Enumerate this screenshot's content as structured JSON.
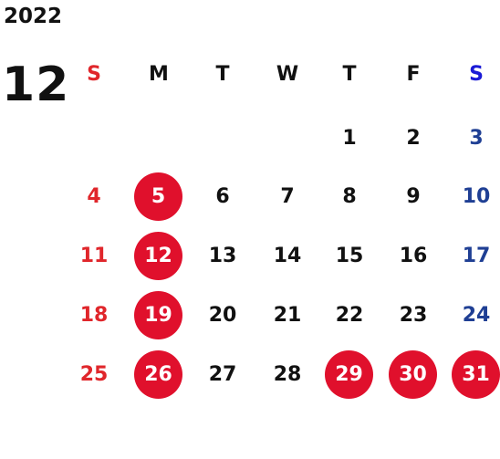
{
  "calendar": {
    "year": "2022",
    "month": "12",
    "weekdays": [
      "S",
      "M",
      "T",
      "W",
      "T",
      "F",
      "S"
    ],
    "weeks": [
      [
        "",
        "",
        "",
        "",
        "1",
        "2",
        "3"
      ],
      [
        "4",
        "5",
        "6",
        "7",
        "8",
        "9",
        "10"
      ],
      [
        "11",
        "12",
        "13",
        "14",
        "15",
        "16",
        "17"
      ],
      [
        "18",
        "19",
        "20",
        "21",
        "22",
        "23",
        "24"
      ],
      [
        "25",
        "26",
        "27",
        "28",
        "29",
        "30",
        "31"
      ]
    ],
    "highlighted_days": [
      "5",
      "12",
      "19",
      "26",
      "29",
      "30",
      "31"
    ]
  },
  "colors": {
    "text": "#111111",
    "sunday": "#e0262b",
    "saturday_header": "#1a1ad6",
    "saturday": "#1f3f94",
    "highlight_fill": "#e0102c",
    "highlight_text": "#ffffff"
  }
}
